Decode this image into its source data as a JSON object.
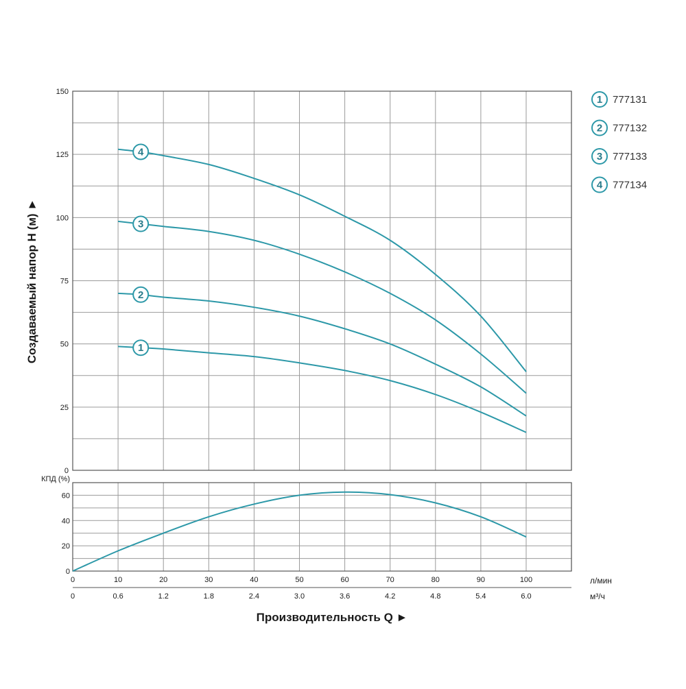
{
  "chart_data": [
    {
      "type": "line",
      "title": "",
      "ylabel": "Создаваемый напор Н (м) ►",
      "xlabel": "Производительность Q ►",
      "x_unit_primary": "л/мин",
      "x_unit_secondary": "м³/ч",
      "ylim": [
        0,
        150
      ],
      "y_ticks": [
        0,
        25,
        50,
        75,
        100,
        125,
        150
      ],
      "xlim": [
        0,
        100
      ],
      "x_ticks_primary": [
        "0",
        "10",
        "20",
        "30",
        "40",
        "50",
        "60",
        "70",
        "80",
        "90",
        "100"
      ],
      "x_ticks_secondary": [
        "0",
        "0.6",
        "1.2",
        "1.8",
        "2.4",
        "3.0",
        "3.6",
        "4.2",
        "4.8",
        "5.4",
        "6.0"
      ],
      "grid": true,
      "legend_position": "right",
      "series": [
        {
          "name": "777131",
          "marker": "1",
          "x": [
            10,
            15,
            20,
            30,
            40,
            50,
            60,
            70,
            80,
            90,
            100
          ],
          "values": [
            49,
            48.5,
            48,
            46.5,
            45,
            42.5,
            39.5,
            35.5,
            30,
            23,
            15
          ]
        },
        {
          "name": "777132",
          "marker": "2",
          "x": [
            10,
            15,
            20,
            30,
            40,
            50,
            60,
            70,
            80,
            90,
            100
          ],
          "values": [
            70,
            69.5,
            68.5,
            67,
            64.5,
            61,
            56,
            50,
            42,
            33,
            21.5
          ]
        },
        {
          "name": "777133",
          "marker": "3",
          "x": [
            10,
            15,
            20,
            30,
            40,
            50,
            60,
            70,
            80,
            90,
            100
          ],
          "values": [
            98.5,
            97.5,
            96.5,
            94.5,
            91,
            85.5,
            78.5,
            70,
            59.5,
            46,
            30.5
          ]
        },
        {
          "name": "777134",
          "marker": "4",
          "x": [
            10,
            15,
            20,
            30,
            40,
            50,
            60,
            70,
            80,
            90,
            100
          ],
          "values": [
            127,
            126,
            124.5,
            121,
            115.5,
            109,
            100.5,
            91,
            77.5,
            61,
            39
          ]
        }
      ]
    },
    {
      "type": "line",
      "title": "",
      "ylabel": "КПД (%)",
      "ylim": [
        0,
        70
      ],
      "y_ticks": [
        0,
        20,
        40,
        60
      ],
      "xlim": [
        0,
        100
      ],
      "grid": true,
      "series": [
        {
          "x": [
            0,
            10,
            20,
            30,
            40,
            50,
            60,
            70,
            80,
            90,
            100
          ],
          "values": [
            0,
            16,
            30,
            43,
            53,
            60,
            62.5,
            60.5,
            54,
            43,
            27
          ]
        }
      ]
    }
  ]
}
